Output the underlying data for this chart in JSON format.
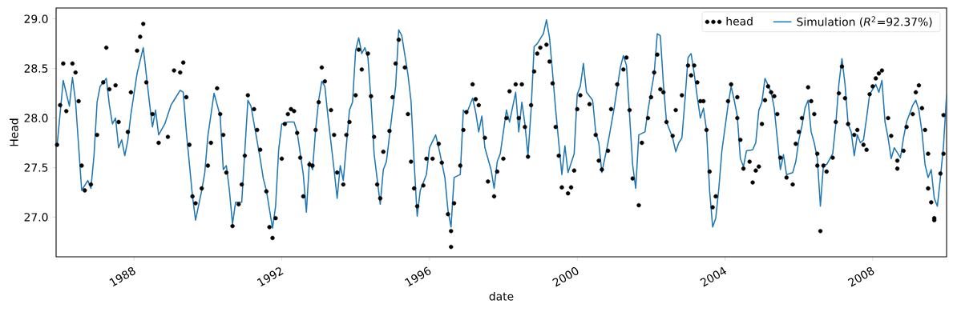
{
  "chart_data": {
    "type": "line",
    "xlabel": "date",
    "ylabel": "Head",
    "xlim": [
      "1985-11-22",
      "2010-01-01"
    ],
    "ylim": [
      26.6,
      29.11
    ],
    "xticks": [
      "1988",
      "1992",
      "1996",
      "2000",
      "2004",
      "2008"
    ],
    "yticks": [
      {
        "value": 27,
        "label": "27.0"
      },
      27.5,
      {
        "value": 28,
        "label": "28.0"
      },
      28.5,
      {
        "value": 29,
        "label": "29.0"
      }
    ],
    "legend": "top right",
    "line_style": "solid",
    "marker": "none",
    "series": [
      {
        "name": "head",
        "type": "scatter",
        "marker": "circle",
        "color": "#000000",
        "x": [
          "1985-12",
          "1986-01",
          "1986-02",
          "1986-03",
          "1986-05",
          "1986-06",
          "1986-07",
          "1986-08",
          "1986-09",
          "1986-11",
          "1987-01",
          "1987-03",
          "1987-04",
          "1987-05",
          "1987-07",
          "1987-08",
          "1987-11",
          "1987-12",
          "1988-02",
          "1988-03",
          "1988-04",
          "1988-05",
          "1988-07",
          "1988-09",
          "1988-12",
          "1989-02",
          "1989-04",
          "1989-05",
          "1989-06",
          "1989-07",
          "1989-08",
          "1989-09",
          "1989-11",
          "1990-01",
          "1990-02",
          "1990-04",
          "1990-05",
          "1990-06",
          "1990-07",
          "1990-09",
          "1990-11",
          "1990-12",
          "1991-01",
          "1991-02",
          "1991-04",
          "1991-05",
          "1991-06",
          "1991-08",
          "1991-09",
          "1991-10",
          "1991-11",
          "1992-01",
          "1992-02",
          "1992-03",
          "1992-04",
          "1992-05",
          "1992-06",
          "1992-07",
          "1992-08",
          "1992-10",
          "1992-11",
          "1992-12",
          "1993-01",
          "1993-02",
          "1993-03",
          "1993-05",
          "1993-06",
          "1993-07",
          "1993-09",
          "1993-10",
          "1993-11",
          "1994-01",
          "1994-02",
          "1994-03",
          "1994-05",
          "1994-06",
          "1994-07",
          "1994-08",
          "1994-09",
          "1994-10",
          "1994-12",
          "1995-01",
          "1995-02",
          "1995-03",
          "1995-05",
          "1995-06",
          "1995-07",
          "1995-08",
          "1995-09",
          "1995-11",
          "1995-12",
          "1996-02",
          "1996-04",
          "1996-05",
          "1996-07",
          "1996-08",
          "1996-08",
          "1996-09",
          "1996-11",
          "1996-12",
          "1997-01",
          "1997-03",
          "1997-04",
          "1997-05",
          "1997-07",
          "1997-08",
          "1997-10",
          "1997-11",
          "1998-01",
          "1998-02",
          "1998-03",
          "1998-05",
          "1998-07",
          "1998-06",
          "1998-08",
          "1998-09",
          "1998-10",
          "1998-11",
          "1998-12",
          "1999-01",
          "1999-03",
          "1999-04",
          "1999-05",
          "1999-06",
          "1999-07",
          "1999-08",
          "1999-10",
          "1999-11",
          "1999-12",
          "2000-01",
          "2000-02",
          "2000-05",
          "2000-07",
          "2000-08",
          "2000-09",
          "2000-11",
          "2000-12",
          "2001-02",
          "2001-04",
          "2001-05",
          "2001-06",
          "2001-07",
          "2001-09",
          "2001-10",
          "2001-12",
          "2002-01",
          "2002-02",
          "2002-03",
          "2002-04",
          "2002-05",
          "2002-06",
          "2002-08",
          "2002-09",
          "2002-11",
          "2003-01",
          "2003-02",
          "2003-03",
          "2003-04",
          "2003-05",
          "2003-06",
          "2003-07",
          "2003-08",
          "2003-09",
          "2003-10",
          "2004-02",
          "2004-03",
          "2004-05",
          "2004-05",
          "2004-06",
          "2004-07",
          "2004-09",
          "2004-10",
          "2004-11",
          "2004-12",
          "2005-01",
          "2005-02",
          "2005-03",
          "2005-04",
          "2005-05",
          "2005-06",
          "2005-07",
          "2005-09",
          "2005-11",
          "2005-12",
          "2006-01",
          "2006-02",
          "2006-04",
          "2006-05",
          "2006-06",
          "2006-07",
          "2006-07",
          "2006-08",
          "2006-09",
          "2006-10",
          "2006-12",
          "2007-01",
          "2007-02",
          "2007-03",
          "2007-04",
          "2007-05",
          "2007-07",
          "2007-08",
          "2007-10",
          "2007-11",
          "2007-12",
          "2008-01",
          "2008-02",
          "2008-03",
          "2008-04",
          "2008-06",
          "2008-07",
          "2008-09",
          "2008-09",
          "2008-11",
          "2008-12",
          "2009-02",
          "2009-03",
          "2009-04",
          "2009-05",
          "2009-06",
          "2009-07",
          "2009-07",
          "2009-08",
          "2009-09",
          "2009-09",
          "2009-11",
          "2009-12",
          "2009-12"
        ],
        "values": [
          27.73,
          28.13,
          28.55,
          28.07,
          28.55,
          28.46,
          28.17,
          27.52,
          27.27,
          27.33,
          27.83,
          28.36,
          28.71,
          28.29,
          28.33,
          27.96,
          27.86,
          28.26,
          28.68,
          28.82,
          28.95,
          28.36,
          28.04,
          27.75,
          27.81,
          28.48,
          28.46,
          28.56,
          28.21,
          27.73,
          27.21,
          27.14,
          27.29,
          27.52,
          27.75,
          28.3,
          28.04,
          27.83,
          27.45,
          26.91,
          27.13,
          27.33,
          27.62,
          28.23,
          28.09,
          27.88,
          27.68,
          27.26,
          26.9,
          26.79,
          26.99,
          27.59,
          27.94,
          28.04,
          28.09,
          28.07,
          27.85,
          27.6,
          27.21,
          27.53,
          27.52,
          27.88,
          28.16,
          28.51,
          28.37,
          28.08,
          27.83,
          27.45,
          27.33,
          27.83,
          27.96,
          28.23,
          28.69,
          28.49,
          28.65,
          28.22,
          27.81,
          27.33,
          27.19,
          27.66,
          27.87,
          28.21,
          28.55,
          28.79,
          28.51,
          28.04,
          27.56,
          27.29,
          27.11,
          27.32,
          27.59,
          27.59,
          27.74,
          27.55,
          27.03,
          26.86,
          26.7,
          27.14,
          27.52,
          27.88,
          28.06,
          28.34,
          28.19,
          28.13,
          27.8,
          27.36,
          27.21,
          27.46,
          27.59,
          28.0,
          28.27,
          28.34,
          28.34,
          28.0,
          27.91,
          27.61,
          28.13,
          28.47,
          28.65,
          28.71,
          28.74,
          28.57,
          28.35,
          27.91,
          27.62,
          27.3,
          27.24,
          27.3,
          27.47,
          28.09,
          28.23,
          28.14,
          27.83,
          27.57,
          27.48,
          27.67,
          28.09,
          28.34,
          28.49,
          28.61,
          28.08,
          27.39,
          27.12,
          27.75,
          28.0,
          28.21,
          28.46,
          28.64,
          28.29,
          28.26,
          27.96,
          27.82,
          28.08,
          28.23,
          28.53,
          28.43,
          28.53,
          28.36,
          28.17,
          28.17,
          27.88,
          27.46,
          27.1,
          27.21,
          28.17,
          28.34,
          28.21,
          28.0,
          27.78,
          27.49,
          27.56,
          27.35,
          27.47,
          27.51,
          27.94,
          28.18,
          28.32,
          28.26,
          28.22,
          28.04,
          27.6,
          27.4,
          27.33,
          27.74,
          27.86,
          28.0,
          28.31,
          28.17,
          28.04,
          27.64,
          27.52,
          26.86,
          27.52,
          27.46,
          27.6,
          27.96,
          28.25,
          28.52,
          28.2,
          27.94,
          27.83,
          27.88,
          27.73,
          27.68,
          28.24,
          28.32,
          28.4,
          28.45,
          28.48,
          28.0,
          27.82,
          27.57,
          27.49,
          27.67,
          27.91,
          28.04,
          28.26,
          28.33,
          28.1,
          27.88,
          27.64,
          27.29,
          27.15,
          26.97,
          26.99,
          27.44,
          27.64,
          28.03
        ]
      },
      {
        "name": "Simulation (*R*$^{2}$=92.37%)",
        "type": "line",
        "color": "#1f77b4",
        "x": [
          "1985-12",
          "1986-02",
          "1986-04",
          "1986-05",
          "1986-06",
          "1986-07",
          "1986-08",
          "1986-10",
          "1986-11",
          "1986-12",
          "1987-01",
          "1987-02",
          "1987-04",
          "1987-05",
          "1987-06",
          "1987-07",
          "1987-08",
          "1987-09",
          "1987-10",
          "1987-11",
          "1987-12",
          "1988-02",
          "1988-04",
          "1988-06",
          "1988-07",
          "1988-08",
          "1988-09",
          "1988-11",
          "1989-01",
          "1989-02",
          "1989-04",
          "1989-05",
          "1989-06",
          "1989-08",
          "1989-09",
          "1989-11",
          "1989-12",
          "1990-01",
          "1990-03",
          "1990-05",
          "1990-06",
          "1990-07",
          "1990-08",
          "1990-09",
          "1990-10",
          "1990-12",
          "1991-02",
          "1991-03",
          "1991-06",
          "1991-07",
          "1991-08",
          "1991-10",
          "1991-11",
          "1991-12",
          "1992-01",
          "1992-03",
          "1992-05",
          "1992-06",
          "1992-08",
          "1992-09",
          "1992-10",
          "1992-11",
          "1992-12",
          "1993-01",
          "1993-02",
          "1993-03",
          "1993-04",
          "1993-06",
          "1993-07",
          "1993-08",
          "1993-09",
          "1993-11",
          "1993-12",
          "1994-01",
          "1994-02",
          "1994-03",
          "1994-04",
          "1994-05",
          "1994-06",
          "1994-07",
          "1994-09",
          "1994-10",
          "1994-11",
          "1995-01",
          "1995-02",
          "1995-03",
          "1995-04",
          "1995-06",
          "1995-07",
          "1995-08",
          "1995-09",
          "1995-10",
          "1995-12",
          "1996-01",
          "1996-03",
          "1996-04",
          "1996-06",
          "1996-07",
          "1996-08",
          "1996-09",
          "1996-11",
          "1996-12",
          "1997-01",
          "1997-03",
          "1997-04",
          "1997-05",
          "1997-06",
          "1997-07",
          "1997-09",
          "1997-10",
          "1997-11",
          "1997-12",
          "1998-02",
          "1998-03",
          "1998-05",
          "1998-06",
          "1998-07",
          "1998-08",
          "1998-09",
          "1998-10",
          "1998-11",
          "1998-12",
          "1999-02",
          "1999-03",
          "1999-04",
          "1999-05",
          "1999-06",
          "1999-07",
          "1999-08",
          "1999-09",
          "1999-10",
          "1999-12",
          "2000-01",
          "2000-02",
          "2000-03",
          "2000-04",
          "2000-06",
          "2000-07",
          "2000-08",
          "2000-09",
          "2000-11",
          "2001-01",
          "2001-03",
          "2001-04",
          "2001-05",
          "2001-07",
          "2001-08",
          "2001-09",
          "2001-11",
          "2001-12",
          "2002-02",
          "2002-03",
          "2002-04",
          "2002-05",
          "2002-06",
          "2002-08",
          "2002-09",
          "2002-10",
          "2002-11",
          "2002-12",
          "2003-01",
          "2003-02",
          "2003-03",
          "2003-04",
          "2003-05",
          "2003-06",
          "2003-07",
          "2003-08",
          "2003-09",
          "2003-10",
          "2003-11",
          "2003-12",
          "2004-02",
          "2004-03",
          "2004-04",
          "2004-05",
          "2004-06",
          "2004-07",
          "2004-08",
          "2004-10",
          "2004-11",
          "2004-12",
          "2005-01",
          "2005-02",
          "2005-04",
          "2005-05",
          "2005-07",
          "2005-08",
          "2005-09",
          "2005-11",
          "2005-12",
          "2006-01",
          "2006-02",
          "2006-03",
          "2006-04",
          "2006-05",
          "2006-06",
          "2006-07",
          "2006-08",
          "2006-09",
          "2006-10",
          "2006-12",
          "2007-01",
          "2007-02",
          "2007-03",
          "2007-04",
          "2007-05",
          "2007-06",
          "2007-07",
          "2007-08",
          "2007-09",
          "2007-10",
          "2007-11",
          "2007-12",
          "2008-02",
          "2008-03",
          "2008-04",
          "2008-05",
          "2008-06",
          "2008-07",
          "2008-08",
          "2008-10",
          "2008-11",
          "2008-12",
          "2009-02",
          "2009-03",
          "2009-04",
          "2009-05",
          "2009-06",
          "2009-07",
          "2009-08",
          "2009-09",
          "2009-10",
          "2009-11",
          "2009-12",
          "2010-01"
        ],
        "values": [
          27.72,
          28.38,
          28.12,
          28.41,
          28.17,
          27.72,
          27.27,
          27.37,
          27.29,
          27.62,
          28.16,
          28.32,
          28.4,
          28.13,
          27.94,
          28.0,
          27.7,
          27.78,
          27.62,
          27.78,
          28.04,
          28.45,
          28.71,
          28.16,
          27.91,
          28.08,
          27.83,
          27.94,
          28.13,
          28.18,
          28.28,
          28.26,
          27.86,
          27.21,
          26.97,
          27.27,
          27.45,
          27.82,
          28.25,
          28.02,
          27.48,
          27.52,
          27.27,
          26.93,
          27.15,
          27.15,
          28.18,
          28.12,
          27.59,
          27.39,
          27.27,
          26.89,
          27.11,
          27.68,
          27.94,
          27.96,
          27.96,
          27.86,
          27.43,
          27.05,
          27.56,
          27.48,
          27.88,
          28.18,
          28.37,
          28.32,
          28.02,
          27.48,
          27.19,
          27.52,
          27.37,
          28.08,
          28.16,
          28.68,
          28.81,
          28.65,
          28.71,
          28.61,
          28.18,
          27.64,
          27.13,
          27.48,
          27.56,
          28.08,
          28.32,
          28.89,
          28.83,
          28.44,
          28.17,
          27.56,
          27.01,
          27.27,
          27.43,
          27.7,
          27.83,
          27.7,
          27.4,
          27.07,
          26.9,
          27.4,
          27.43,
          28.08,
          28.04,
          28.2,
          28.06,
          27.86,
          28.02,
          27.7,
          27.48,
          27.29,
          27.56,
          27.64,
          28.08,
          27.96,
          28.26,
          27.86,
          28.16,
          27.94,
          27.62,
          28.08,
          28.72,
          28.75,
          28.85,
          28.99,
          28.81,
          28.45,
          28.08,
          27.75,
          27.43,
          27.72,
          27.45,
          27.64,
          28.24,
          28.32,
          28.55,
          28.26,
          28.18,
          27.86,
          27.75,
          27.45,
          27.75,
          28.1,
          28.51,
          28.63,
          28.53,
          27.53,
          27.29,
          27.83,
          27.86,
          28.08,
          28.45,
          28.85,
          28.83,
          28.34,
          27.96,
          27.8,
          27.66,
          27.75,
          27.8,
          28.18,
          28.61,
          28.65,
          28.45,
          28.21,
          28.0,
          28.1,
          27.88,
          27.27,
          26.9,
          26.99,
          27.29,
          27.67,
          28.13,
          28.32,
          28.18,
          28.02,
          27.59,
          27.51,
          27.67,
          27.68,
          27.75,
          28.08,
          28.16,
          28.4,
          28.26,
          28.1,
          27.48,
          27.63,
          27.43,
          27.45,
          27.56,
          27.78,
          27.92,
          28.1,
          28.18,
          27.86,
          27.75,
          27.59,
          27.11,
          27.53,
          27.53,
          27.64,
          27.94,
          28.34,
          28.6,
          28.34,
          27.94,
          27.86,
          27.62,
          27.83,
          27.75,
          27.78,
          28.0,
          28.24,
          28.34,
          28.26,
          28.38,
          27.96,
          27.8,
          27.59,
          27.7,
          27.6,
          27.8,
          27.96,
          28.13,
          28.18,
          28.08,
          27.86,
          27.53,
          27.4,
          27.48,
          27.19,
          27.11,
          27.4,
          27.72,
          28.24
        ]
      }
    ]
  }
}
